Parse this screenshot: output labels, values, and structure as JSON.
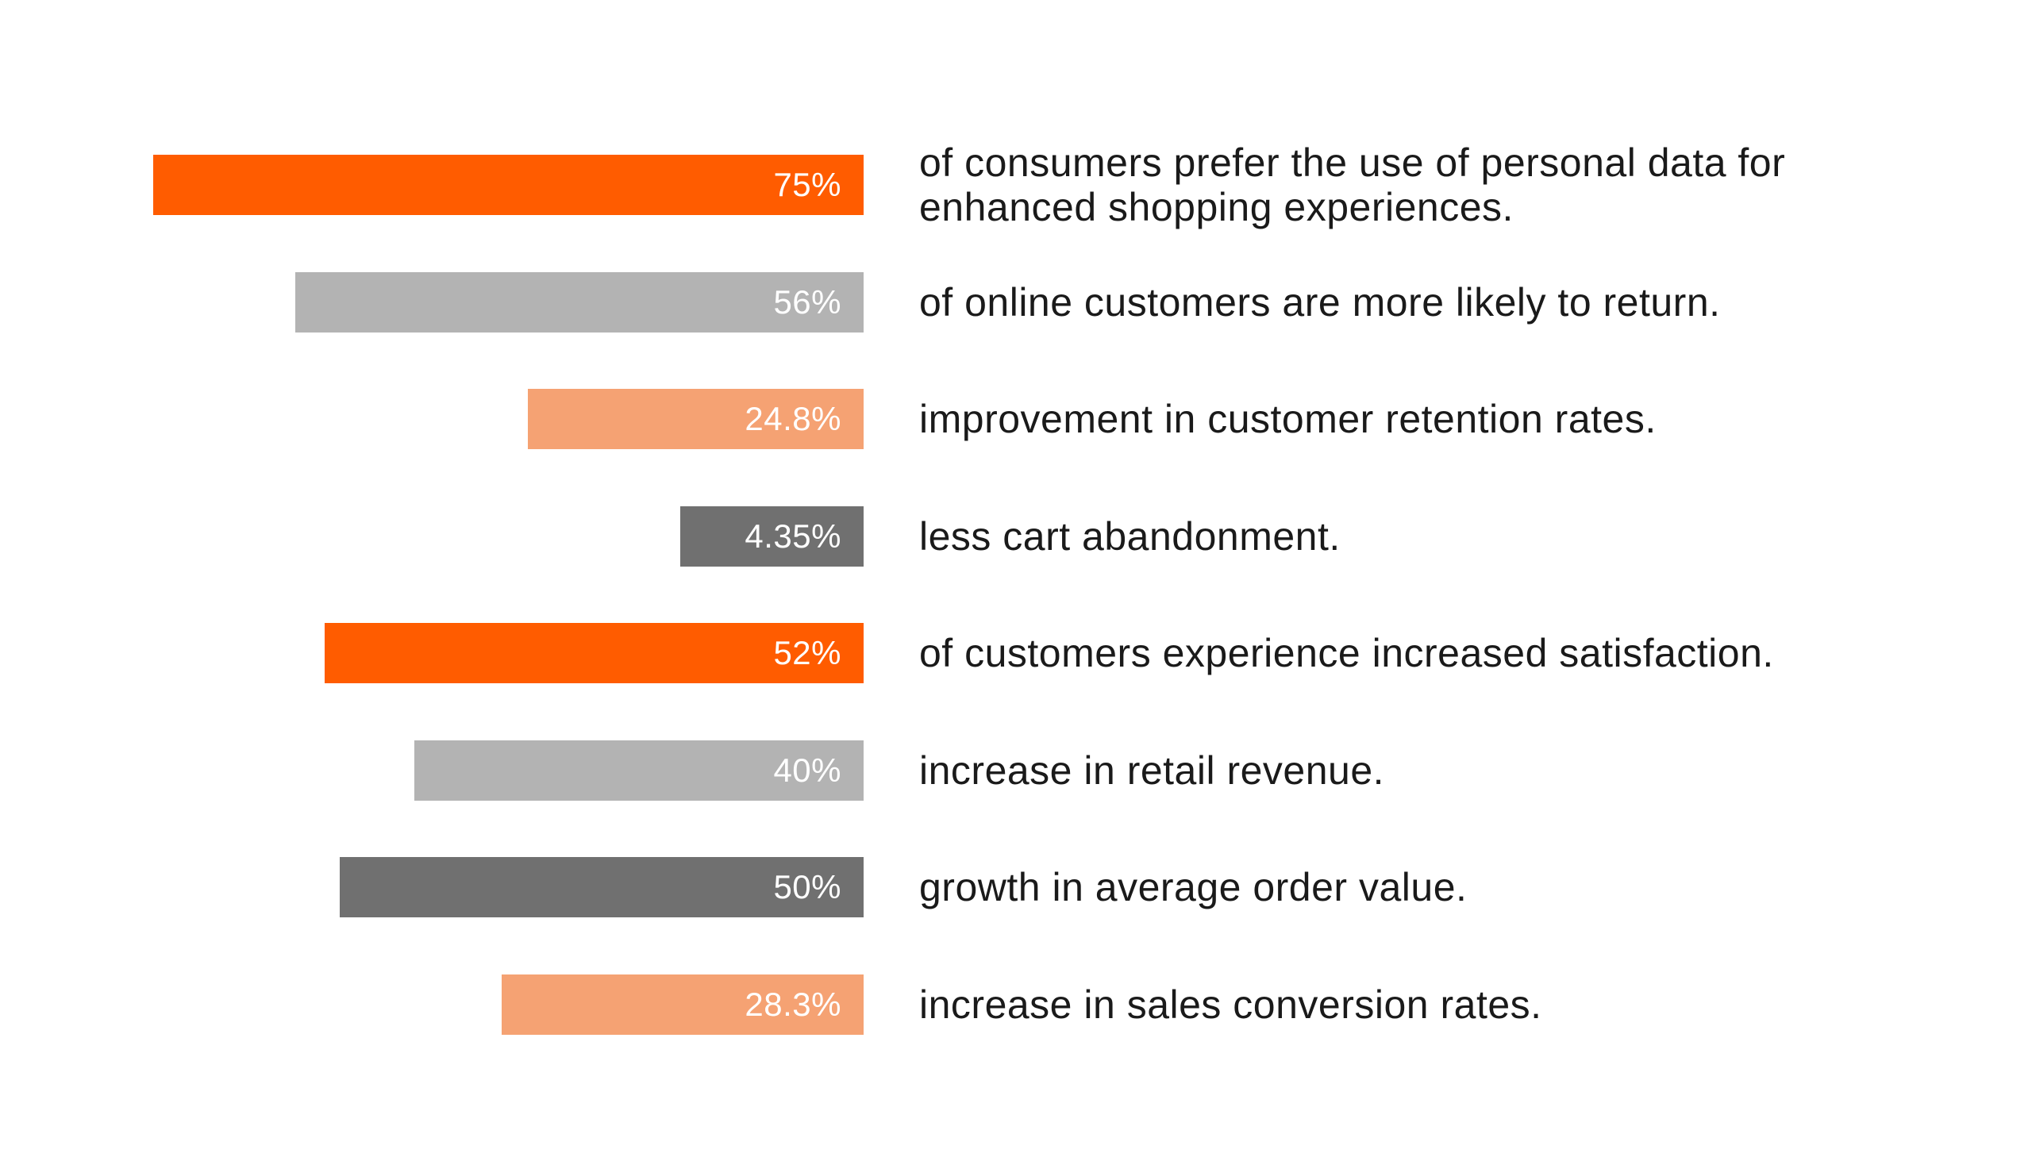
{
  "chart_data": {
    "type": "bar",
    "orientation": "horizontal",
    "title": "",
    "xlabel": "",
    "ylabel": "",
    "scale_note": "bars grow leftward from a shared right edge",
    "items": [
      {
        "value": 75,
        "label": "75%",
        "color": "#ff5c00",
        "description": "of consumers prefer the use of personal data for enhanced shopping experiences."
      },
      {
        "value": 56,
        "label": "56%",
        "color": "#b3b3b3",
        "description": "of online customers are more likely to return."
      },
      {
        "value": 24.8,
        "label": "24.8%",
        "color": "#f5a273",
        "description": "improvement in customer retention rates."
      },
      {
        "value": 4.35,
        "label": "4.35%",
        "color": "#707070",
        "description": "less cart abandonment."
      },
      {
        "value": 52,
        "label": "52%",
        "color": "#ff5c00",
        "description": "of customers experience increased satisfaction."
      },
      {
        "value": 40,
        "label": "40%",
        "color": "#b3b3b3",
        "description": "increase in retail revenue."
      },
      {
        "value": 50,
        "label": "50%",
        "color": "#707070",
        "description": "growth in average order value."
      },
      {
        "value": 28.3,
        "label": "28.3%",
        "color": "#f5a273",
        "description": "increase in sales conversion rates."
      }
    ]
  }
}
